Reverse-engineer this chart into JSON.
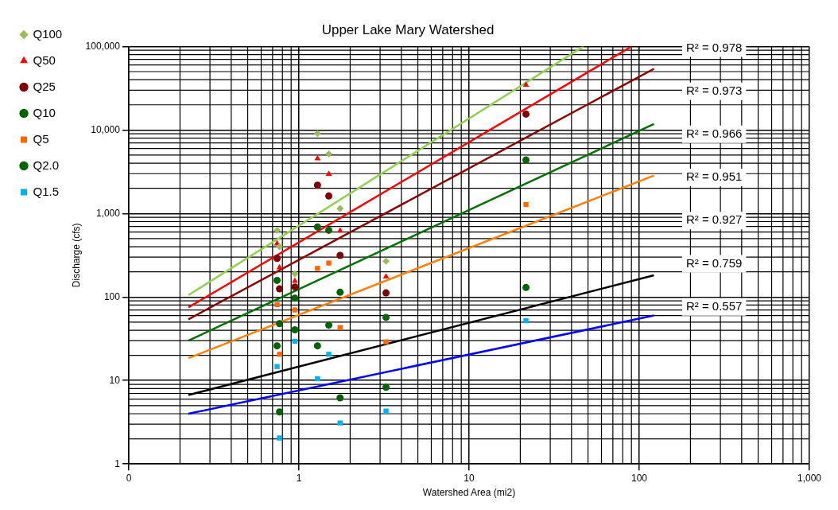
{
  "chart_data": {
    "type": "scatter",
    "title": "Upper Lake Mary Watershed",
    "xlabel": "Watershed Area (mi2)",
    "ylabel": "Discharge (cfs)",
    "log": "xy",
    "grid": true,
    "legend": "top left",
    "x": [
      0.744,
      0.769,
      0.947,
      1.286,
      1.498,
      1.746,
      3.25,
      21.6
    ],
    "xlim": [
      0.1,
      1000
    ],
    "xticks": [
      {
        "value": 0.1,
        "label": "0"
      },
      1,
      10,
      100,
      {
        "value": 1000,
        "label": "1,000"
      }
    ],
    "ylim": [
      1,
      100000
    ],
    "yticks": [
      1,
      10,
      100,
      {
        "value": 1000,
        "label": "1,000"
      },
      {
        "value": 10000,
        "label": "10,000"
      },
      {
        "value": 100000,
        "label": "100,000"
      }
    ],
    "series": [
      {
        "name": "Q100",
        "color": "#9bbb59",
        "marker": "diamond",
        "values": [
          630,
          400,
          190,
          9100,
          5150,
          1150,
          268,
          null
        ]
      },
      {
        "name": "Q50",
        "color": "#ff0000",
        "marker": "triangle",
        "values": [
          435,
          225,
          155,
          4550,
          2960,
          620,
          175,
          34700
        ]
      },
      {
        "name": "Q25",
        "color": "#7f0000",
        "marker": "circle",
        "values": [
          290,
          125,
          132,
          2180,
          1620,
          315,
          112,
          15500
        ]
      },
      {
        "name": "Q10",
        "color": "#006400",
        "marker": "circle",
        "values": [
          158,
          48,
          97,
          690,
          630,
          114,
          57,
          4370
        ]
      },
      {
        "name": "Q5",
        "color": "#ff6600",
        "marker": "square",
        "values": [
          81,
          20.6,
          70,
          220,
          255,
          43,
          29,
          1280
        ]
      },
      {
        "name": "Q2.0",
        "color": "#006400",
        "marker": "circle",
        "values": [
          26,
          4.2,
          40.5,
          26,
          46,
          6.2,
          8.3,
          130
        ]
      },
      {
        "name": "Q1.5",
        "color": "#00b0f0",
        "marker": "square",
        "values": [
          14.7,
          2.05,
          29.5,
          10.5,
          20.6,
          3.1,
          4.3,
          52
        ]
      },
      {
        "type": "line",
        "color": "#92d050",
        "marker": "none",
        "x": [
          0.224,
          47
        ],
        "values": [
          105,
          100000
        ]
      },
      {
        "type": "line",
        "color": "#ff0000",
        "marker": "none",
        "x": [
          0.224,
          90
        ],
        "values": [
          75,
          100000
        ]
      },
      {
        "type": "line",
        "color": "#8b0000",
        "marker": "none",
        "x": [
          0.224,
          122
        ],
        "values": [
          54,
          54000
        ]
      },
      {
        "type": "line",
        "color": "#007000",
        "marker": "none",
        "x": [
          0.224,
          122
        ],
        "values": [
          30,
          11800
        ]
      },
      {
        "type": "line",
        "color": "#ff7f00",
        "marker": "none",
        "x": [
          0.224,
          122
        ],
        "values": [
          18.5,
          2850
        ]
      },
      {
        "type": "line",
        "color": "#000000",
        "marker": "none",
        "x": [
          0.224,
          122
        ],
        "values": [
          6.7,
          182
        ]
      },
      {
        "type": "line",
        "color": "#0000ff",
        "marker": "none",
        "x": [
          0.224,
          122
        ],
        "values": [
          4,
          60
        ]
      }
    ],
    "annotations": [
      "R² = 0.978",
      "R² = 0.973",
      "R² = 0.966",
      "R² = 0.951",
      "R² = 0.927",
      "R² = 0.759",
      "R² = 0.557"
    ]
  }
}
